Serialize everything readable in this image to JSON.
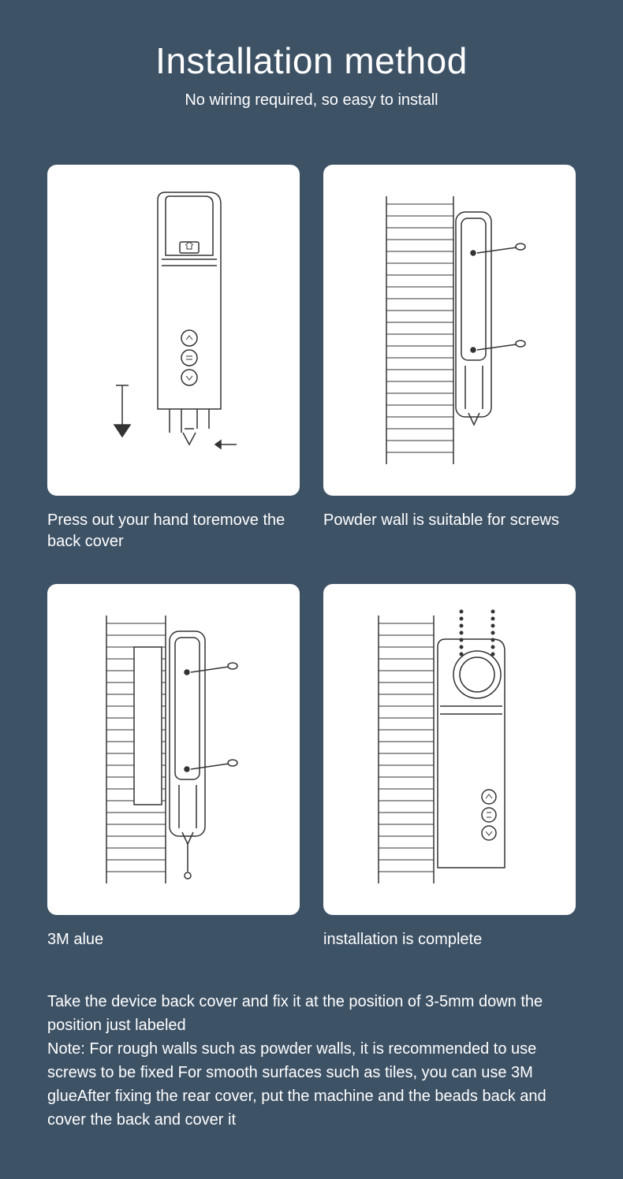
{
  "header": {
    "title": "Installation method",
    "subtitle": "No wiring required, so easy to install"
  },
  "panels": [
    {
      "caption": "Press out your hand toremove the back cover"
    },
    {
      "caption": "Powder wall is suitable for screws"
    },
    {
      "caption": "3M alue"
    },
    {
      "caption": "installation is complete"
    }
  ],
  "footer": "Take the device back cover and fix it at the position of 3-5mm down the position just labeled\nNote: For rough walls such as powder walls, it is recommended to use screws to be fixed For smooth surfaces such as tiles, you can use 3M glueAfter fixing the rear cover, put the machine and the beads back and cover the back and cover it",
  "colors": {
    "background": "#3e5266",
    "panel_bg": "#ffffff",
    "text": "#ffffff",
    "line": "#333333"
  },
  "diagram": {
    "type": "infographic",
    "stroke_color": "#333333",
    "stroke_width": 1.5,
    "panel_size": [
      320,
      420
    ],
    "layout": "2x2-grid"
  }
}
